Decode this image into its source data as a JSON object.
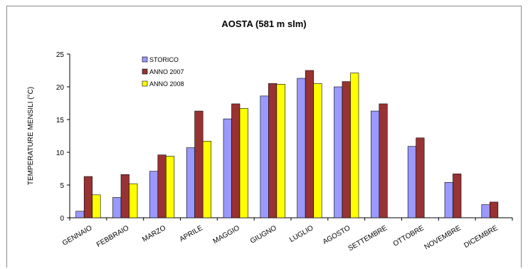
{
  "chart_data": {
    "type": "bar",
    "title": "AOSTA (581 m slm)",
    "ylabel": "TEMPERATURE MENSILI (°C)",
    "xlabel": "",
    "ylim": [
      0,
      25
    ],
    "yticks": [
      0,
      5,
      10,
      15,
      20,
      25
    ],
    "grid": false,
    "legend_position": "top-left",
    "categories": [
      "GENNAIO",
      "FEBBRAIO",
      "MARZO",
      "APRILE",
      "MAGGIO",
      "GIUGNO",
      "LUGLIO",
      "AGOSTO",
      "SETTEMBRE",
      "OTTOBRE",
      "NOVEMBRE",
      "DICEMBRE"
    ],
    "series": [
      {
        "name": "STORICO",
        "color": "#9999ff",
        "values": [
          1.0,
          3.1,
          7.1,
          10.7,
          15.1,
          18.6,
          21.3,
          20.0,
          16.3,
          10.9,
          5.4,
          2.0
        ]
      },
      {
        "name": "ANNO 2007",
        "color": "#993333",
        "values": [
          6.3,
          6.6,
          9.6,
          16.3,
          17.4,
          20.5,
          22.5,
          20.8,
          17.4,
          12.2,
          6.7,
          2.4
        ]
      },
      {
        "name": "ANNO 2008",
        "color": "#ffff00",
        "values": [
          3.5,
          5.2,
          9.4,
          11.7,
          16.7,
          20.4,
          20.5,
          22.1,
          null,
          null,
          null,
          null
        ]
      }
    ]
  }
}
